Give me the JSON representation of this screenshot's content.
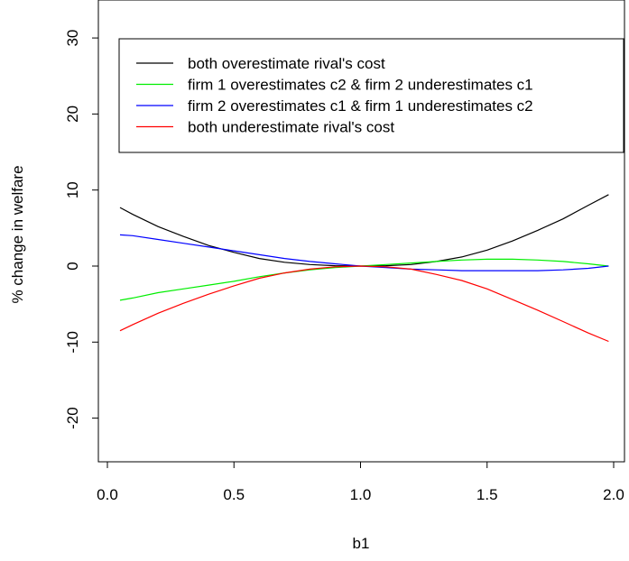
{
  "chart_data": {
    "type": "line",
    "xlabel": "b1",
    "ylabel": "% change in welfare",
    "xlim": [
      0.0,
      2.0
    ],
    "ylim": [
      -25,
      35
    ],
    "x_ticks": [
      "0.0",
      "0.5",
      "1.0",
      "1.5",
      "2.0"
    ],
    "y_ticks": [
      "-20",
      "-10",
      "0",
      "10",
      "20",
      "30"
    ],
    "y_tick_values": [
      -20,
      -10,
      0,
      10,
      20,
      30
    ],
    "x_tick_values": [
      0.0,
      0.5,
      1.0,
      1.5,
      2.0
    ],
    "grid": false,
    "legend_position": "top",
    "x": [
      0.05,
      0.1,
      0.2,
      0.3,
      0.4,
      0.5,
      0.6,
      0.7,
      0.8,
      0.9,
      1.0,
      1.1,
      1.2,
      1.3,
      1.4,
      1.5,
      1.6,
      1.7,
      1.8,
      1.9,
      1.98
    ],
    "series": [
      {
        "name": "both overestimate rival's cost",
        "color": "#000000",
        "values": [
          7.7,
          6.8,
          5.2,
          3.9,
          2.7,
          1.8,
          1.0,
          0.5,
          0.2,
          0.05,
          0.0,
          0.05,
          0.2,
          0.6,
          1.2,
          2.1,
          3.3,
          4.7,
          6.2,
          8.0,
          9.4
        ]
      },
      {
        "name": "firm 1 overestimates c2 & firm 2 underestimates c1",
        "color": "#00ee00",
        "values": [
          -4.5,
          -4.2,
          -3.5,
          -3.0,
          -2.5,
          -2.0,
          -1.4,
          -0.9,
          -0.5,
          -0.2,
          0.0,
          0.2,
          0.4,
          0.6,
          0.8,
          0.9,
          0.9,
          0.8,
          0.6,
          0.3,
          0.0
        ]
      },
      {
        "name": "firm 2 overestimates c1 & firm 1 underestimates c2",
        "color": "#0000ff",
        "values": [
          4.1,
          4.0,
          3.5,
          3.0,
          2.5,
          2.0,
          1.5,
          1.0,
          0.6,
          0.3,
          0.0,
          -0.2,
          -0.4,
          -0.5,
          -0.6,
          -0.6,
          -0.6,
          -0.6,
          -0.5,
          -0.3,
          0.0
        ]
      },
      {
        "name": "both underestimate rival's cost",
        "color": "#ff0000",
        "values": [
          -8.5,
          -7.7,
          -6.2,
          -4.9,
          -3.7,
          -2.6,
          -1.6,
          -0.9,
          -0.4,
          -0.1,
          0.0,
          -0.1,
          -0.4,
          -1.1,
          -1.9,
          -3.0,
          -4.4,
          -5.8,
          -7.3,
          -8.8,
          -9.9
        ]
      }
    ]
  }
}
